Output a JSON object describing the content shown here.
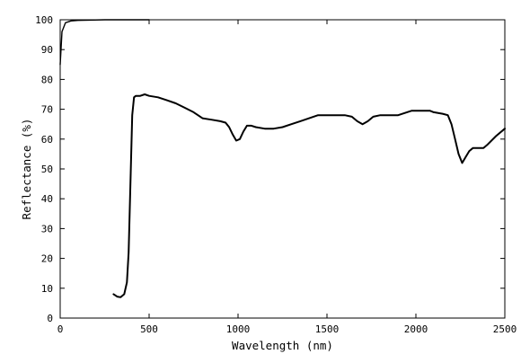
{
  "chart_data": {
    "type": "line",
    "title": "",
    "xlabel": "Wavelength (nm)",
    "ylabel": "Reflectance (%)",
    "xlim": [
      0,
      2500
    ],
    "ylim": [
      0,
      100
    ],
    "x_ticks": [
      0,
      500,
      1000,
      1500,
      2000,
      2500
    ],
    "y_ticks": [
      0,
      10,
      20,
      30,
      40,
      50,
      60,
      70,
      80,
      90,
      100
    ],
    "grid": false,
    "series": [
      {
        "x": [
          300,
          320,
          340,
          360,
          375,
          385,
          395,
          405,
          415,
          425,
          450,
          475,
          500,
          550,
          600,
          650,
          700,
          750,
          800,
          850,
          900,
          930,
          950,
          970,
          990,
          1010,
          1030,
          1050,
          1075,
          1100,
          1150,
          1200,
          1250,
          1300,
          1350,
          1400,
          1450,
          1500,
          1550,
          1600,
          1640,
          1670,
          1700,
          1730,
          1760,
          1800,
          1850,
          1900,
          1950,
          1975,
          2000,
          2050,
          2080,
          2100,
          2150,
          2180,
          2200,
          2220,
          2240,
          2260,
          2280,
          2300,
          2320,
          2350,
          2380,
          2400,
          2450,
          2500
        ],
        "y": [
          8,
          7.2,
          7,
          8,
          12,
          22,
          45,
          68,
          74,
          74.5,
          74.5,
          75,
          74.5,
          74,
          73,
          72,
          70.5,
          69,
          67,
          66.5,
          66,
          65.5,
          64,
          61.5,
          59.5,
          60,
          62.5,
          64.5,
          64.5,
          64,
          63.5,
          63.5,
          64,
          65,
          66,
          67,
          68,
          68,
          68,
          68,
          67.5,
          66,
          65,
          66,
          67.5,
          68,
          68,
          68,
          69,
          69.5,
          69.5,
          69.5,
          69.5,
          69,
          68.5,
          68,
          65,
          60,
          55,
          52,
          54,
          56,
          57,
          57,
          57,
          58,
          61,
          63.5
        ]
      },
      {
        "x": [
          0,
          10,
          30,
          60,
          100,
          250,
          500
        ],
        "y": [
          85,
          96,
          99,
          99.6,
          99.8,
          100,
          100
        ]
      }
    ]
  }
}
